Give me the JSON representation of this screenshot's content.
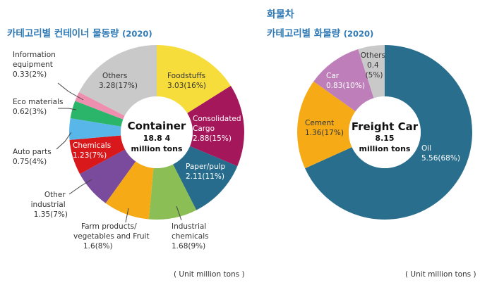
{
  "left": {
    "title": "카테고리별 컨테이너 물동량",
    "year": "(2020)",
    "unit": "( Unit  million tons )",
    "center": {
      "line1": "Container",
      "line2": "18.8 4",
      "line3": "million tons"
    }
  },
  "right": {
    "heading": "화물차",
    "title": "카테고리별 화물량",
    "year": "(2020)",
    "unit": "( Unit  million tons )",
    "center": {
      "line1": "Freight Car",
      "line2": "8.15",
      "line3": "million tons"
    }
  },
  "chart_data": [
    {
      "type": "pie",
      "title": "카테고리별 컨테이너 물동량 (2020)",
      "total": 18.84,
      "unit": "million tons",
      "slices": [
        {
          "label": "Foodstuffs",
          "value": 3.03,
          "percent": 16,
          "text": "3.03(16%)",
          "color": "#f7dd3c"
        },
        {
          "label": "Consolidated Cargo",
          "value": 2.88,
          "percent": 15,
          "text": "2.88(15%)",
          "color": "#a4175a"
        },
        {
          "label": "Paper/pulp",
          "value": 2.11,
          "percent": 11,
          "text": "2.11(11%)",
          "color": "#276c8c"
        },
        {
          "label": "Industrial chemicals",
          "value": 1.68,
          "percent": 9,
          "text": "1.68(9%)",
          "color": "#8bbf55"
        },
        {
          "label": "Farm products/ vegetables and Fruit",
          "value": 1.6,
          "percent": 8,
          "text": "1.6(8%)",
          "color": "#f6ab16"
        },
        {
          "label": "Other industrial",
          "value": 1.35,
          "percent": 7,
          "text": "1.35(7%)",
          "color": "#7a4a9c"
        },
        {
          "label": "Chemicals",
          "value": 1.23,
          "percent": 7,
          "text": "1.23(7%)",
          "color": "#d9181c"
        },
        {
          "label": "Auto parts",
          "value": 0.75,
          "percent": 4,
          "text": "0.75(4%)",
          "color": "#58b6e8"
        },
        {
          "label": "Eco materials",
          "value": 0.62,
          "percent": 3,
          "text": "0.62(3%)",
          "color": "#2bb56b"
        },
        {
          "label": "Information equipment",
          "value": 0.33,
          "percent": 2,
          "text": "0.33(2%)",
          "color": "#ef8fb0"
        },
        {
          "label": "Others",
          "value": 3.28,
          "percent": 17,
          "text": "3.28(17%)",
          "color": "#c9c9c9"
        }
      ]
    },
    {
      "type": "pie",
      "title": "카테고리별 화물량 (2020)",
      "total": 8.15,
      "unit": "million tons",
      "slices": [
        {
          "label": "Oil",
          "value": 5.56,
          "percent": 68,
          "text": "5.56(68%)",
          "color": "#296e8d"
        },
        {
          "label": "Cement",
          "value": 1.36,
          "percent": 17,
          "text": "1.36(17%)",
          "color": "#f6ab16"
        },
        {
          "label": "Car",
          "value": 0.83,
          "percent": 10,
          "text": "0.83(10%)",
          "color": "#be7eba"
        },
        {
          "label": "Others",
          "value": 0.4,
          "percent": 5,
          "text": "(5%)",
          "value_text": "0.4",
          "color": "#c9c9c9"
        }
      ]
    }
  ]
}
